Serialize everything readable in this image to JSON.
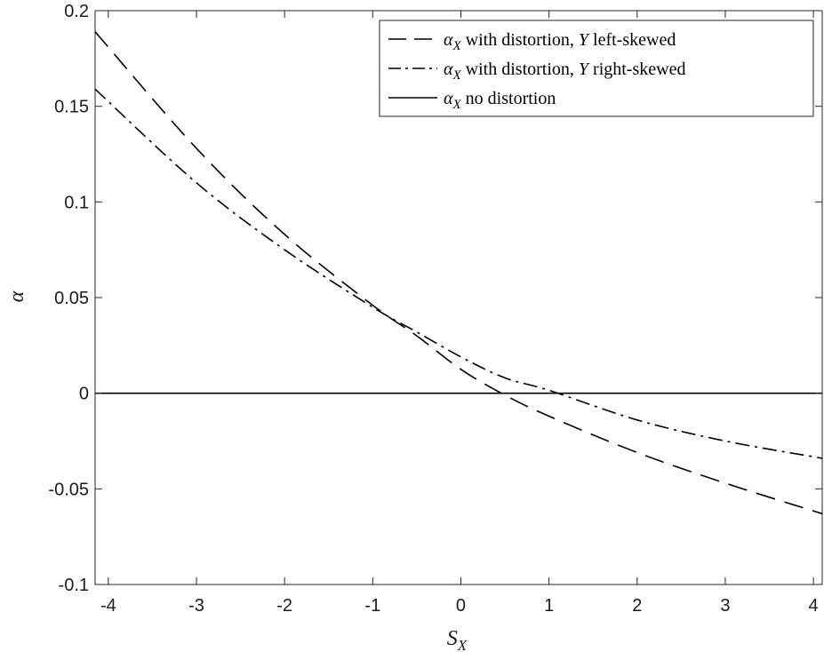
{
  "chart_data": {
    "type": "line",
    "xlabel_main": "S",
    "xlabel_sub": "X",
    "ylabel": "α",
    "xlim": [
      -4.15,
      4.1
    ],
    "ylim": [
      -0.1,
      0.2
    ],
    "xticks": [
      -4,
      -3,
      -2,
      -1,
      0,
      1,
      2,
      3,
      4
    ],
    "yticks": [
      -0.1,
      -0.05,
      0,
      0.05,
      0.1,
      0.15,
      0.2
    ],
    "ytick_labels": [
      "-0.1",
      "-0.05",
      "0",
      "0.05",
      "0.1",
      "0.15",
      "0.2"
    ],
    "legend_position": "top-right",
    "grid": false,
    "series": [
      {
        "style": "dashed",
        "legend": {
          "sym": "α",
          "sub": "X",
          "mid": " with distortion, ",
          "var": "Y",
          "tail": " left-skewed"
        },
        "x": [
          -4.15,
          -3,
          -2,
          -1,
          -0.5,
          0,
          0.5,
          1,
          2,
          3,
          4.1
        ],
        "y": [
          0.189,
          0.128,
          0.083,
          0.046,
          0.03,
          0.0125,
          -0.001,
          -0.012,
          -0.031,
          -0.047,
          -0.063
        ]
      },
      {
        "style": "dashdot",
        "legend": {
          "sym": "α",
          "sub": "X",
          "mid": " with distortion, ",
          "var": "Y",
          "tail": " right-skewed"
        },
        "x": [
          -4.15,
          -3,
          -2,
          -1,
          -0.5,
          0,
          0.5,
          1,
          2,
          3,
          4.1
        ],
        "y": [
          0.159,
          0.11,
          0.075,
          0.045,
          0.032,
          0.019,
          0.008,
          0.0015,
          -0.014,
          -0.025,
          -0.034
        ]
      },
      {
        "style": "solid",
        "legend": {
          "sym": "α",
          "sub": "X",
          "mid": " no distortion",
          "var": "",
          "tail": ""
        },
        "x": [
          -4.15,
          4.1
        ],
        "y": [
          0,
          0
        ]
      }
    ]
  }
}
